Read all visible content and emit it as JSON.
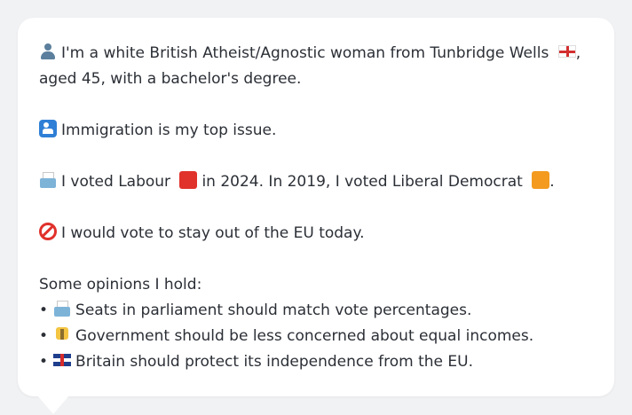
{
  "profile": {
    "line1": "I'm a white British Atheist/Agnostic woman from Tunbridge Wells",
    "line1_end": ",",
    "line2": "aged 45, with a bachelor's degree."
  },
  "issue": {
    "text": "Immigration is my top issue."
  },
  "vote": {
    "part1": "I voted Labour",
    "part2": "in 2024. In 2019, I voted Liberal Democrat",
    "part3": "."
  },
  "eu": {
    "text": "I would vote to stay out of the EU today."
  },
  "opinions": {
    "heading": "Some opinions I hold:",
    "bullet": "•",
    "items": [
      {
        "icon": "ballot-box-icon",
        "text": "Seats in parliament should match vote percentages."
      },
      {
        "icon": "scales-icon",
        "text": "Government should be less concerned about equal incomes."
      },
      {
        "icon": "uk-flag-icon",
        "text": "Britain should protect its independence from the EU."
      }
    ]
  },
  "icons": {
    "person": "person-icon",
    "england_flag": "england-flag-icon",
    "immigration": "immigration-icon",
    "ballot": "ballot-box-icon",
    "labour_square": "red-square-icon",
    "libdem_square": "orange-square-icon",
    "no_entry": "no-entry-icon"
  },
  "colors": {
    "labour": "#e0312b",
    "libdem": "#f39a1f",
    "background": "#f1f2f4",
    "card": "#ffffff",
    "text": "#2b2f36"
  }
}
